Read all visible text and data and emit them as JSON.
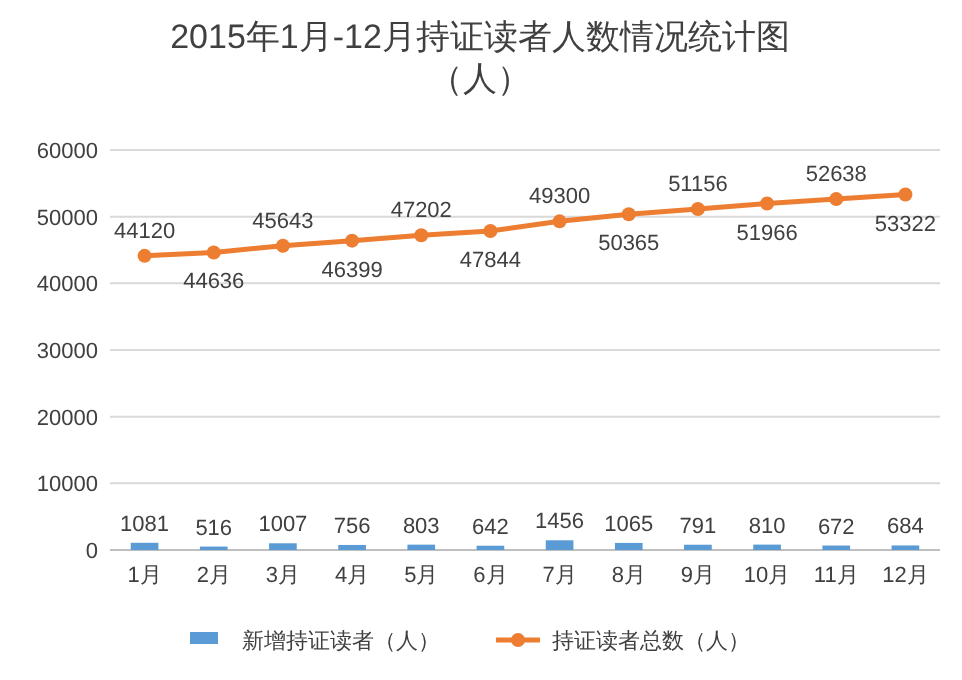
{
  "chart_data": {
    "type": "bar",
    "title": "2015年1月-12月持证读者人数情况统计图（人）",
    "categories": [
      "1月",
      "2月",
      "3月",
      "4月",
      "5月",
      "6月",
      "7月",
      "8月",
      "9月",
      "10月",
      "11月",
      "12月"
    ],
    "series": [
      {
        "name": "新增持证读者（人）",
        "color": "#5b9bd5",
        "values": [
          1081,
          516,
          1007,
          756,
          803,
          642,
          1456,
          1065,
          791,
          810,
          672,
          684
        ]
      },
      {
        "name": "持证读者总数（人）",
        "type": "line",
        "color": "#ed7d31",
        "marker": "circle",
        "values": [
          44120,
          44636,
          45643,
          46399,
          47202,
          47844,
          49300,
          50365,
          51156,
          51966,
          52638,
          53322
        ]
      }
    ],
    "ylim": [
      0,
      60000
    ],
    "yticks": [
      0,
      10000,
      20000,
      30000,
      40000,
      50000,
      60000
    ],
    "grid": "y",
    "legend": "bottom",
    "data_labels": true
  }
}
